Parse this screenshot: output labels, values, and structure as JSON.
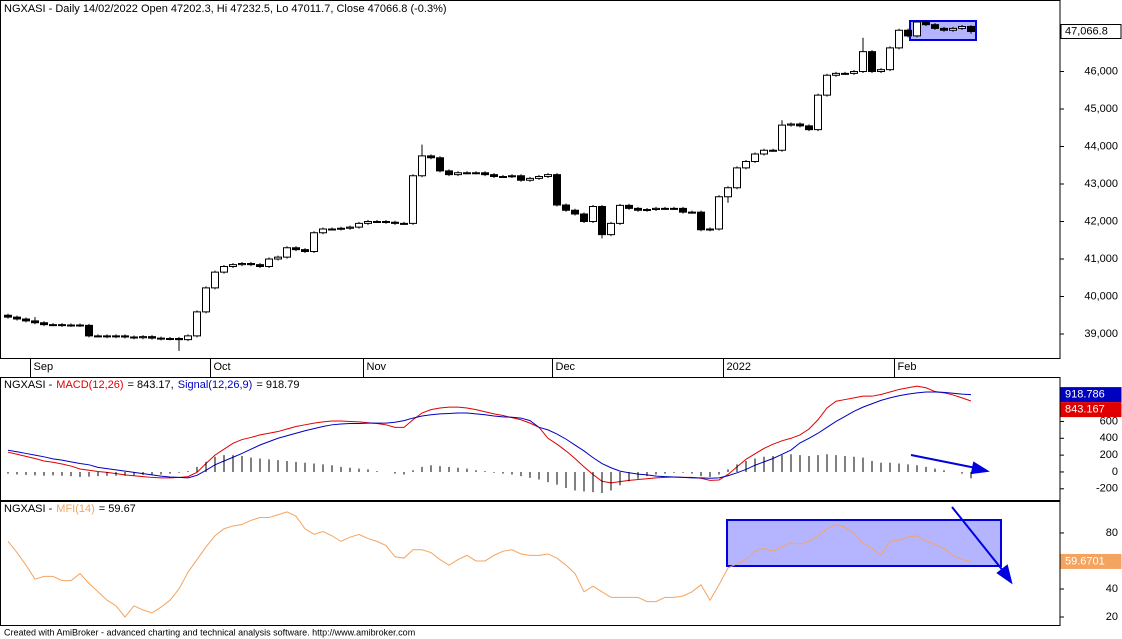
{
  "chart_data": [
    {
      "type": "candlestick",
      "title": "NGXASI - Daily 14/02/2022 Open 47202.3, Hi 47232.5, Lo 47011.7, Close 47066.8 (-0.3%)",
      "categories": [
        null,
        null,
        null,
        "Sep",
        null,
        null,
        null,
        null,
        null,
        null,
        null,
        null,
        null,
        null,
        null,
        null,
        null,
        null,
        null,
        null,
        null,
        null,
        null,
        "Oct",
        null,
        null,
        null,
        null,
        null,
        null,
        null,
        null,
        null,
        null,
        null,
        null,
        null,
        null,
        null,
        null,
        "Nov",
        null,
        null,
        null,
        null,
        null,
        null,
        null,
        null,
        null,
        null,
        null,
        null,
        null,
        null,
        null,
        null,
        null,
        null,
        null,
        null,
        "Dec",
        null,
        null,
        null,
        null,
        null,
        null,
        null,
        null,
        null,
        null,
        null,
        null,
        null,
        null,
        null,
        null,
        null,
        null,
        "2022",
        null,
        null,
        null,
        null,
        null,
        null,
        null,
        null,
        null,
        null,
        null,
        null,
        null,
        null,
        null,
        null,
        null,
        null,
        "Feb",
        null,
        null,
        null,
        null,
        null,
        null,
        null,
        null
      ],
      "open": [
        39500,
        39450,
        39400,
        39350,
        39300,
        39250,
        39250,
        39230,
        39240,
        39230,
        38950,
        38950,
        38930,
        38950,
        38920,
        38900,
        38930,
        38890,
        38870,
        38880,
        38850,
        38950,
        39590,
        40230,
        40650,
        40800,
        40850,
        40880,
        40850,
        40800,
        41000,
        41050,
        41300,
        41250,
        41200,
        41700,
        41800,
        41800,
        41820,
        41850,
        41950,
        42000,
        42000,
        41980,
        41950,
        41950,
        43220,
        43750,
        43700,
        43350,
        43250,
        43300,
        43300,
        43300,
        43250,
        43200,
        43200,
        43220,
        43100,
        43150,
        43200,
        43250,
        42440,
        42300,
        42200,
        42000,
        42400,
        41650,
        41950,
        42430,
        42350,
        42300,
        42320,
        42350,
        42350,
        42350,
        42250,
        42250,
        41780,
        41800,
        42660,
        42900,
        43430,
        43600,
        43800,
        43900,
        43900,
        44570,
        44600,
        44550,
        44450,
        45370,
        45900,
        45950,
        45950,
        46000,
        46530,
        46000,
        46050,
        46630,
        47100,
        46950,
        47320,
        47250,
        47150,
        47100,
        47150,
        47202.3
      ],
      "high": [
        39540,
        39490,
        39440,
        39450,
        39340,
        39290,
        39290,
        39280,
        39280,
        39270,
        38990,
        38990,
        38990,
        38990,
        38960,
        38970,
        38970,
        38930,
        38920,
        38920,
        38990,
        39630,
        40270,
        40690,
        40840,
        40890,
        40920,
        40920,
        40890,
        41040,
        41090,
        41340,
        41340,
        41290,
        41740,
        41840,
        41840,
        41860,
        41890,
        41990,
        42040,
        42040,
        42040,
        42020,
        41990,
        43260,
        44050,
        43790,
        43740,
        43390,
        43340,
        43340,
        43340,
        43340,
        43290,
        43240,
        43260,
        43260,
        43190,
        43240,
        43290,
        43290,
        42480,
        42340,
        42240,
        42440,
        42440,
        41990,
        42470,
        42470,
        42390,
        42360,
        42390,
        42390,
        42390,
        42390,
        42290,
        42290,
        41840,
        42700,
        42940,
        43470,
        43640,
        43840,
        43940,
        43940,
        44700,
        44640,
        44640,
        44590,
        45410,
        45940,
        45990,
        45990,
        46040,
        46900,
        46570,
        46090,
        46670,
        47140,
        47140,
        47360,
        47360,
        47290,
        47190,
        47190,
        47240,
        47232.5
      ],
      "low": [
        39410,
        39360,
        39310,
        39260,
        39210,
        39210,
        39190,
        39190,
        39190,
        38910,
        38910,
        38890,
        38890,
        38880,
        38860,
        38860,
        38850,
        38830,
        38830,
        38550,
        38810,
        38910,
        39550,
        40190,
        40610,
        40760,
        40810,
        40810,
        40760,
        40760,
        40960,
        41010,
        41210,
        41160,
        41160,
        41660,
        41760,
        41760,
        41780,
        41810,
        41910,
        41960,
        41940,
        41910,
        41910,
        41910,
        43180,
        43660,
        43310,
        43210,
        43210,
        43260,
        43260,
        43210,
        43160,
        43160,
        43160,
        43060,
        43060,
        43110,
        43160,
        42400,
        42260,
        42160,
        41960,
        41960,
        41550,
        41610,
        41910,
        42310,
        42260,
        42260,
        42280,
        42310,
        42310,
        42210,
        42210,
        41740,
        41740,
        41760,
        42500,
        42860,
        43390,
        43560,
        43760,
        43860,
        43860,
        44530,
        44510,
        44410,
        44410,
        45330,
        45860,
        45910,
        45910,
        45960,
        45960,
        45960,
        46010,
        46590,
        46910,
        46910,
        47210,
        47110,
        47060,
        47060,
        47110,
        47011.7
      ],
      "close": [
        39450,
        39400,
        39350,
        39300,
        39250,
        39250,
        39230,
        39240,
        39230,
        38950,
        38950,
        38930,
        38950,
        38920,
        38900,
        38930,
        38890,
        38870,
        38880,
        38850,
        38950,
        39590,
        40230,
        40650,
        40800,
        40850,
        40880,
        40850,
        40800,
        41000,
        41050,
        41300,
        41250,
        41200,
        41700,
        41800,
        41800,
        41820,
        41850,
        41950,
        42000,
        42000,
        41980,
        41950,
        41950,
        43220,
        43750,
        43700,
        43350,
        43250,
        43300,
        43300,
        43300,
        43250,
        43200,
        43200,
        43220,
        43100,
        43150,
        43200,
        43250,
        42440,
        42300,
        42200,
        42000,
        42400,
        41650,
        41950,
        42430,
        42350,
        42300,
        42320,
        42350,
        42350,
        42350,
        42250,
        42250,
        41780,
        41800,
        42660,
        42900,
        43430,
        43600,
        43800,
        43900,
        43900,
        44570,
        44600,
        44550,
        44450,
        45370,
        45900,
        45950,
        45950,
        46000,
        46530,
        46000,
        46050,
        46630,
        47100,
        46950,
        47320,
        47250,
        47150,
        47100,
        47150,
        47200,
        47066.8
      ],
      "last_label": "47,066.8",
      "ylim": [
        38360,
        47907
      ],
      "yticks": [
        {
          "value": 39000,
          "label": "39,000"
        },
        {
          "value": 40000,
          "label": "40,000"
        },
        {
          "value": 41000,
          "label": "41,000"
        },
        {
          "value": 42000,
          "label": "42,000"
        },
        {
          "value": 43000,
          "label": "43,000"
        },
        {
          "value": 44000,
          "label": "44,000"
        },
        {
          "value": 45000,
          "label": "45,000"
        },
        {
          "value": 46000,
          "label": "46,000"
        }
      ]
    },
    {
      "type": "line",
      "title": "NGXASI -",
      "series": [
        {
          "name": "MACD(12,26)",
          "legend_label": "= 843.17,",
          "color": "#e00000",
          "last_label": "843.167",
          "values": [
            235,
            210,
            185,
            160,
            130,
            115,
            95,
            70,
            35,
            20,
            5,
            -5,
            -20,
            -35,
            -45,
            -55,
            -65,
            -70,
            -70,
            -65,
            -55,
            -5,
            100,
            200,
            270,
            340,
            385,
            410,
            440,
            460,
            480,
            510,
            540,
            560,
            580,
            595,
            605,
            605,
            600,
            595,
            585,
            575,
            560,
            530,
            530,
            620,
            700,
            740,
            760,
            770,
            770,
            760,
            740,
            715,
            690,
            670,
            645,
            620,
            580,
            530,
            400,
            330,
            250,
            160,
            60,
            -30,
            -110,
            -130,
            -115,
            -100,
            -90,
            -80,
            -70,
            -65,
            -60,
            -65,
            -65,
            -75,
            -100,
            -95,
            -30,
            60,
            150,
            215,
            280,
            330,
            370,
            400,
            440,
            510,
            620,
            760,
            840,
            860,
            880,
            900,
            900,
            920,
            950,
            980,
            1000,
            1020,
            1000,
            955,
            940,
            915,
            880,
            843.167
          ]
        },
        {
          "name": "Signal(12,26,9)",
          "legend_label": "= 918.79",
          "color": "#0000c0",
          "last_label": "918.786",
          "values": [
            258,
            240,
            220,
            200,
            180,
            155,
            140,
            120,
            100,
            85,
            55,
            40,
            25,
            10,
            -5,
            -20,
            -35,
            -50,
            -60,
            -65,
            -70,
            -40,
            20,
            85,
            130,
            175,
            220,
            270,
            320,
            360,
            400,
            430,
            460,
            490,
            515,
            540,
            560,
            570,
            575,
            575,
            580,
            580,
            580,
            590,
            610,
            640,
            665,
            680,
            690,
            695,
            700,
            700,
            690,
            680,
            665,
            655,
            650,
            640,
            610,
            530,
            500,
            450,
            390,
            320,
            250,
            170,
            100,
            50,
            10,
            -10,
            -25,
            -35,
            -50,
            -55,
            -60,
            -65,
            -70,
            -70,
            -75,
            -70,
            -45,
            -10,
            30,
            80,
            120,
            160,
            210,
            260,
            345,
            400,
            460,
            530,
            600,
            660,
            720,
            770,
            810,
            850,
            880,
            905,
            925,
            940,
            950,
            950,
            945,
            935,
            925,
            918.786
          ]
        },
        {
          "style": "histogram",
          "color": "#000000",
          "values": [
            -20,
            -30,
            -35,
            -40,
            -45,
            -40,
            -45,
            -50,
            -60,
            -55,
            -50,
            -45,
            -45,
            -45,
            -40,
            -35,
            -35,
            -30,
            -20,
            -10,
            10,
            60,
            120,
            180,
            200,
            200,
            190,
            170,
            160,
            150,
            140,
            130,
            120,
            110,
            100,
            90,
            80,
            60,
            50,
            40,
            30,
            10,
            0,
            -20,
            -30,
            20,
            60,
            80,
            70,
            60,
            50,
            40,
            20,
            10,
            -10,
            -20,
            -30,
            -50,
            -70,
            -90,
            -120,
            -150,
            -190,
            -220,
            -230,
            -240,
            -250,
            -220,
            -160,
            -110,
            -80,
            -50,
            -30,
            -20,
            -10,
            -10,
            -20,
            -50,
            -60,
            -30,
            30,
            90,
            130,
            160,
            180,
            190,
            200,
            210,
            200,
            190,
            200,
            210,
            200,
            190,
            180,
            170,
            130,
            110,
            110,
            100,
            90,
            80,
            60,
            40,
            20,
            0,
            -20,
            -76
          ]
        }
      ],
      "ylim": [
        -333,
        1116
      ],
      "yticks": [
        -200,
        0,
        200,
        400,
        600
      ]
    },
    {
      "type": "line",
      "title": "NGXASI -",
      "series": [
        {
          "name": "MFI(14)",
          "legend_label": "= 59.67",
          "color": "#f4a460",
          "last_label": "59.6701",
          "values": [
            74,
            66,
            57,
            47,
            49,
            49,
            46,
            46,
            51,
            44,
            38,
            32,
            28,
            20,
            28,
            25,
            23,
            27,
            32,
            40,
            52,
            61,
            70,
            78,
            83,
            85,
            86,
            89,
            91,
            91,
            93,
            95,
            92,
            83,
            79,
            81,
            78,
            74,
            77,
            79,
            76,
            74,
            71,
            63,
            62,
            68,
            68,
            66,
            61,
            57,
            61,
            64,
            60,
            60,
            64,
            67,
            68,
            65,
            64,
            64,
            65,
            62,
            57,
            51,
            38,
            42,
            38,
            34,
            34,
            34,
            34,
            31,
            31,
            34,
            34,
            35,
            38,
            43,
            32,
            43,
            55,
            58,
            61,
            67,
            69,
            67,
            70,
            73,
            72,
            74,
            78,
            83,
            86,
            84,
            80,
            73,
            69,
            64,
            74,
            75,
            77,
            78,
            74,
            72,
            69,
            64,
            61,
            59.6701
          ]
        }
      ],
      "ylim": [
        14.3,
        102.1
      ],
      "yticks": [
        20,
        40,
        80
      ]
    }
  ],
  "footer": "Created with AmiBroker - advanced charting and technical analysis software. http://www.amibroker.com"
}
